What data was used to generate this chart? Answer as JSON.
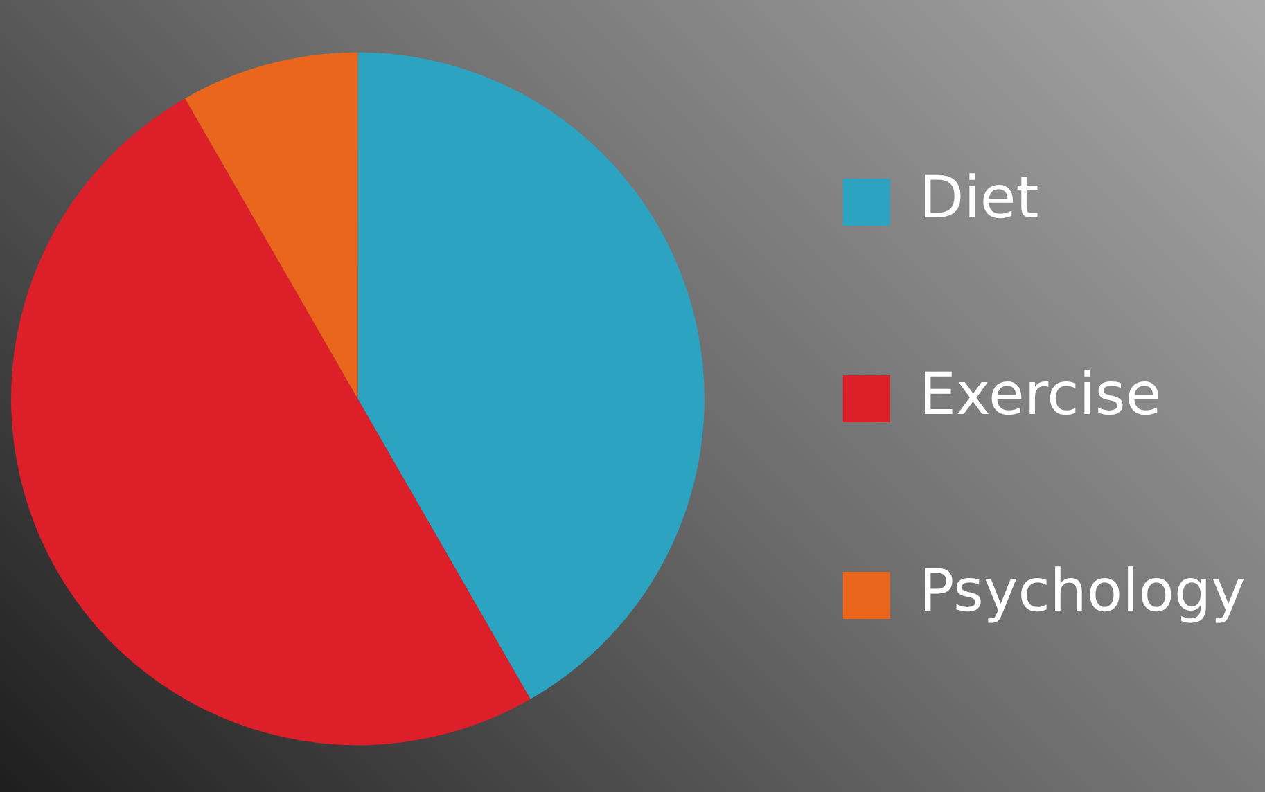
{
  "chart_data": {
    "type": "pie",
    "categories": [
      "Diet",
      "Exercise",
      "Psychology"
    ],
    "values": [
      41.7,
      50,
      8.3
    ],
    "colors": [
      "#2ca3c0",
      "#dc1f29",
      "#ea661c"
    ],
    "legend": "right"
  }
}
